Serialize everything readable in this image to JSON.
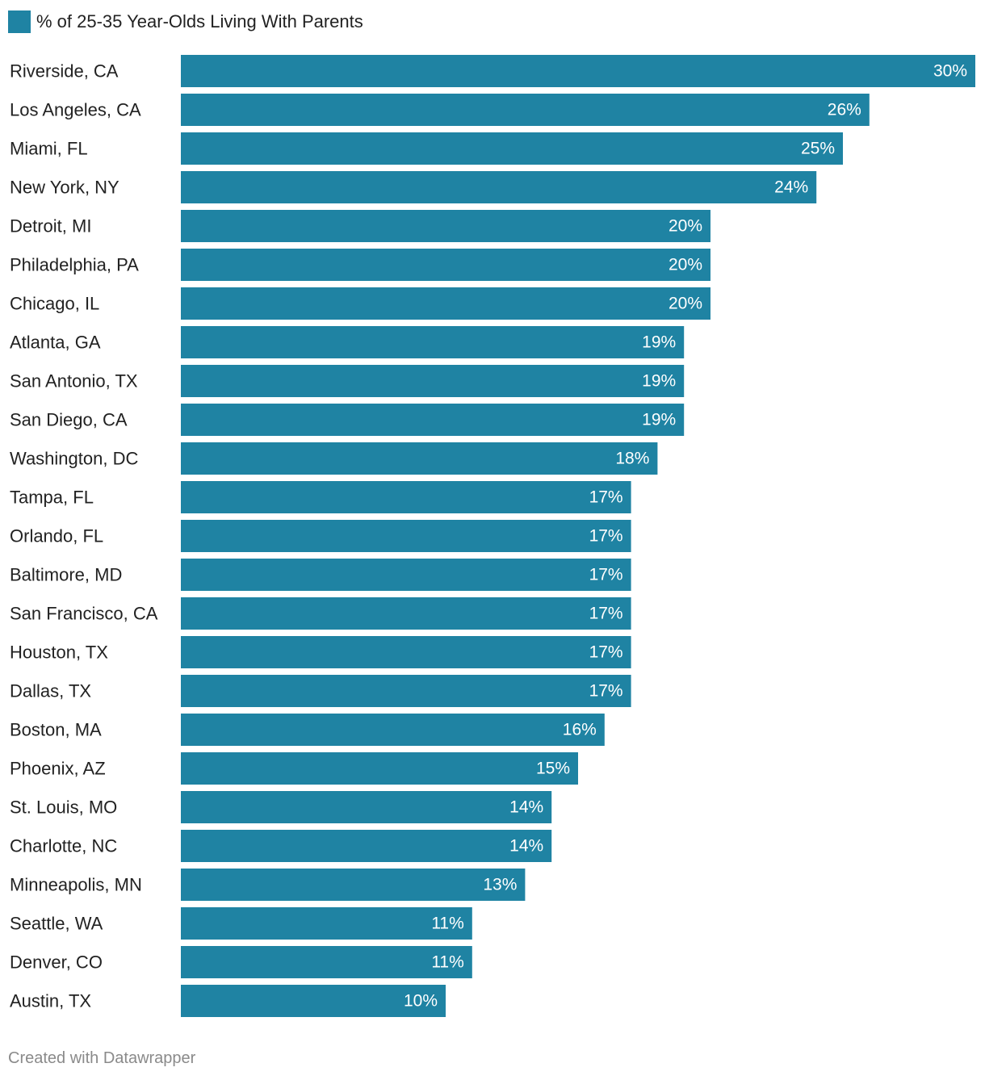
{
  "legend": {
    "label": "% of 25-35 Year-Olds Living With Parents",
    "color": "#1f83a3"
  },
  "chart_data": {
    "type": "bar",
    "orientation": "horizontal",
    "series": [
      {
        "name": "% of 25-35 Year-Olds Living With Parents",
        "color": "#1f83a3"
      }
    ],
    "categories": [
      "Riverside, CA",
      "Los Angeles, CA",
      "Miami, FL",
      "New York, NY",
      "Detroit, MI",
      "Philadelphia, PA",
      "Chicago, IL",
      "Atlanta, GA",
      "San Antonio, TX",
      "San Diego, CA",
      "Washington, DC",
      "Tampa, FL",
      "Orlando, FL",
      "Baltimore, MD",
      "San Francisco, CA",
      "Houston, TX",
      "Dallas, TX",
      "Boston, MA",
      "Phoenix, AZ",
      "St. Louis, MO",
      "Charlotte, NC",
      "Minneapolis, MN",
      "Seattle, WA",
      "Denver, CO",
      "Austin, TX"
    ],
    "values": [
      30,
      26,
      25,
      24,
      20,
      20,
      20,
      19,
      19,
      19,
      18,
      17,
      17,
      17,
      17,
      17,
      17,
      16,
      15,
      14,
      14,
      13,
      11,
      11,
      10
    ],
    "labels": [
      "30%",
      "26%",
      "25%",
      "24%",
      "20%",
      "20%",
      "20%",
      "19%",
      "19%",
      "19%",
      "18%",
      "17%",
      "17%",
      "17%",
      "17%",
      "17%",
      "17%",
      "16%",
      "15%",
      "14%",
      "14%",
      "13%",
      "11%",
      "11%",
      "10%"
    ],
    "xlim": [
      0,
      30
    ],
    "grid": false,
    "legend_position": "top-left"
  },
  "footer": {
    "credit": "Created with Datawrapper"
  }
}
